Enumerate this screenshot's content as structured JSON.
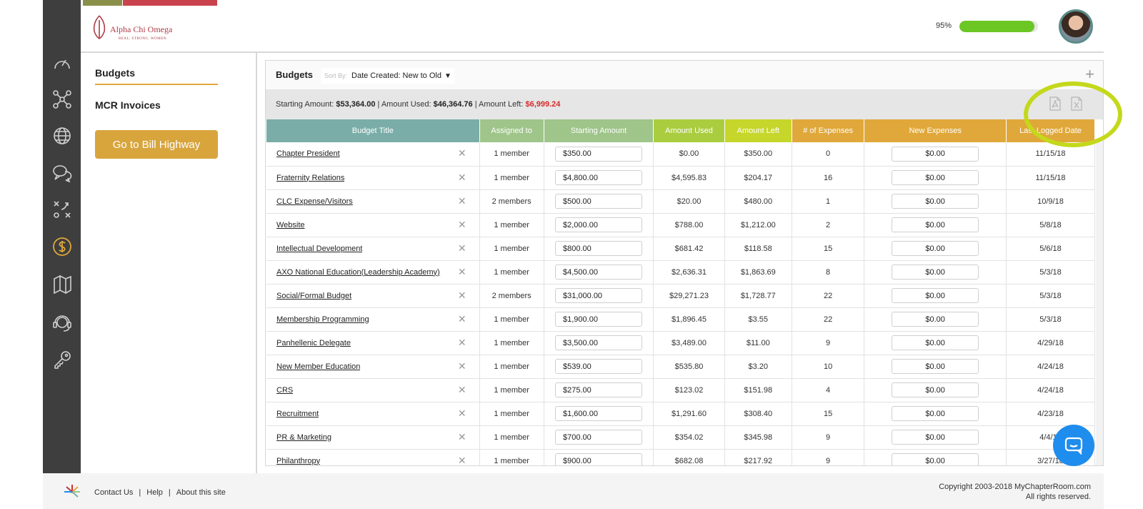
{
  "brand": {
    "name": "Alpha Chi Omega",
    "tagline": "REAL. STRONG. WOMEN."
  },
  "header": {
    "progress_label": "95%",
    "progress_fraction": 0.95
  },
  "sidebar": {
    "icons": [
      "dashboard-icon",
      "network-icon",
      "globe-icon",
      "chat-icon",
      "strategy-icon",
      "dollar-icon",
      "books-icon",
      "support-icon",
      "key-icon"
    ]
  },
  "subnav": {
    "budgets": "Budgets",
    "mcr_invoices": "MCR Invoices",
    "bill_button": "Go to Bill Highway"
  },
  "panel": {
    "title": "Budgets",
    "sort_label": "Sort By:",
    "sort_value": "Date Created: New to Old",
    "summary": {
      "starting_label": "Starting Amount:",
      "starting_value": "$53,364.00",
      "used_label": "Amount Used:",
      "used_value": "$46,364.76",
      "left_label": "Amount Left:",
      "left_value": "$6,999.24"
    }
  },
  "table": {
    "headers": [
      "Budget Title",
      "Assigned to",
      "Starting Amount",
      "Amount Used",
      "Amount Left",
      "# of Expenses",
      "New Expenses",
      "Last Logged Date"
    ],
    "header_colors": [
      "#7aada8",
      "#9fc58a",
      "#9fc58a",
      "#aacd40",
      "#c6d62b",
      "#e0a83a",
      "#e0a83a",
      "#e0a83a"
    ],
    "rows": [
      {
        "title": "Chapter President",
        "assigned": "1 member",
        "starting": "$350.00",
        "used": "$0.00",
        "left": "$350.00",
        "expenses": "0",
        "new_expenses": "$0.00",
        "date": "11/15/18"
      },
      {
        "title": "Fraternity Relations",
        "assigned": "1 member",
        "starting": "$4,800.00",
        "used": "$4,595.83",
        "left": "$204.17",
        "expenses": "16",
        "new_expenses": "$0.00",
        "date": "11/15/18"
      },
      {
        "title": "CLC Expense/Visitors",
        "assigned": "2 members",
        "starting": "$500.00",
        "used": "$20.00",
        "left": "$480.00",
        "expenses": "1",
        "new_expenses": "$0.00",
        "date": "10/9/18"
      },
      {
        "title": "Website",
        "assigned": "1 member",
        "starting": "$2,000.00",
        "used": "$788.00",
        "left": "$1,212.00",
        "expenses": "2",
        "new_expenses": "$0.00",
        "date": "5/8/18"
      },
      {
        "title": "Intellectual Development",
        "assigned": "1 member",
        "starting": "$800.00",
        "used": "$681.42",
        "left": "$118.58",
        "expenses": "15",
        "new_expenses": "$0.00",
        "date": "5/6/18"
      },
      {
        "title": "AXO National Education(Leadership Academy)",
        "assigned": "1 member",
        "starting": "$4,500.00",
        "used": "$2,636.31",
        "left": "$1,863.69",
        "expenses": "8",
        "new_expenses": "$0.00",
        "date": "5/3/18"
      },
      {
        "title": "Social/Formal Budget",
        "assigned": "2 members",
        "starting": "$31,000.00",
        "used": "$29,271.23",
        "left": "$1,728.77",
        "expenses": "22",
        "new_expenses": "$0.00",
        "date": "5/3/18"
      },
      {
        "title": "Membership Programming",
        "assigned": "1 member",
        "starting": "$1,900.00",
        "used": "$1,896.45",
        "left": "$3.55",
        "expenses": "22",
        "new_expenses": "$0.00",
        "date": "5/3/18"
      },
      {
        "title": "Panhellenic Delegate",
        "assigned": "1 member",
        "starting": "$3,500.00",
        "used": "$3,489.00",
        "left": "$11.00",
        "expenses": "9",
        "new_expenses": "$0.00",
        "date": "4/29/18"
      },
      {
        "title": "New Member Education",
        "assigned": "1 member",
        "starting": "$539.00",
        "used": "$535.80",
        "left": "$3.20",
        "expenses": "10",
        "new_expenses": "$0.00",
        "date": "4/24/18"
      },
      {
        "title": "CRS",
        "assigned": "1 member",
        "starting": "$275.00",
        "used": "$123.02",
        "left": "$151.98",
        "expenses": "4",
        "new_expenses": "$0.00",
        "date": "4/24/18"
      },
      {
        "title": "Recruitment",
        "assigned": "1 member",
        "starting": "$1,600.00",
        "used": "$1,291.60",
        "left": "$308.40",
        "expenses": "15",
        "new_expenses": "$0.00",
        "date": "4/23/18"
      },
      {
        "title": "PR & Marketing",
        "assigned": "1 member",
        "starting": "$700.00",
        "used": "$354.02",
        "left": "$345.98",
        "expenses": "9",
        "new_expenses": "$0.00",
        "date": "4/4/18"
      },
      {
        "title": "Philanthropy",
        "assigned": "1 member",
        "starting": "$900.00",
        "used": "$682.08",
        "left": "$217.92",
        "expenses": "9",
        "new_expenses": "$0.00",
        "date": "3/27/18"
      }
    ]
  },
  "footer": {
    "contact": "Contact Us",
    "help": "Help",
    "about": "About this site",
    "separator": "|",
    "copyright_line1": "Copyright 2003-2018 MyChapterRoom.com",
    "copyright_line2": "All rights reserved."
  }
}
